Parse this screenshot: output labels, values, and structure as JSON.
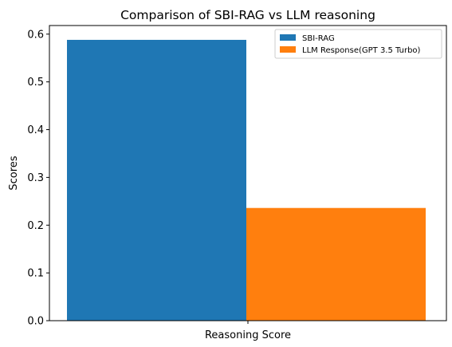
{
  "chart_data": {
    "type": "bar",
    "title": "Comparison of SBI-RAG vs LLM reasoning",
    "xlabel": "",
    "ylabel": "Scores",
    "categories": [
      "Reasoning Score"
    ],
    "series": [
      {
        "name": "SBI-RAG",
        "values": [
          0.588
        ],
        "color": "#1f77b4"
      },
      {
        "name": "LLM Response(GPT 3.5 Turbo)",
        "values": [
          0.236
        ],
        "color": "#ff7f0e"
      }
    ],
    "ylim": [
      0,
      0.618
    ],
    "yticks": [
      "0.0",
      "0.1",
      "0.2",
      "0.3",
      "0.4",
      "0.5",
      "0.6"
    ],
    "grid": false,
    "legend_position": "top-right"
  }
}
